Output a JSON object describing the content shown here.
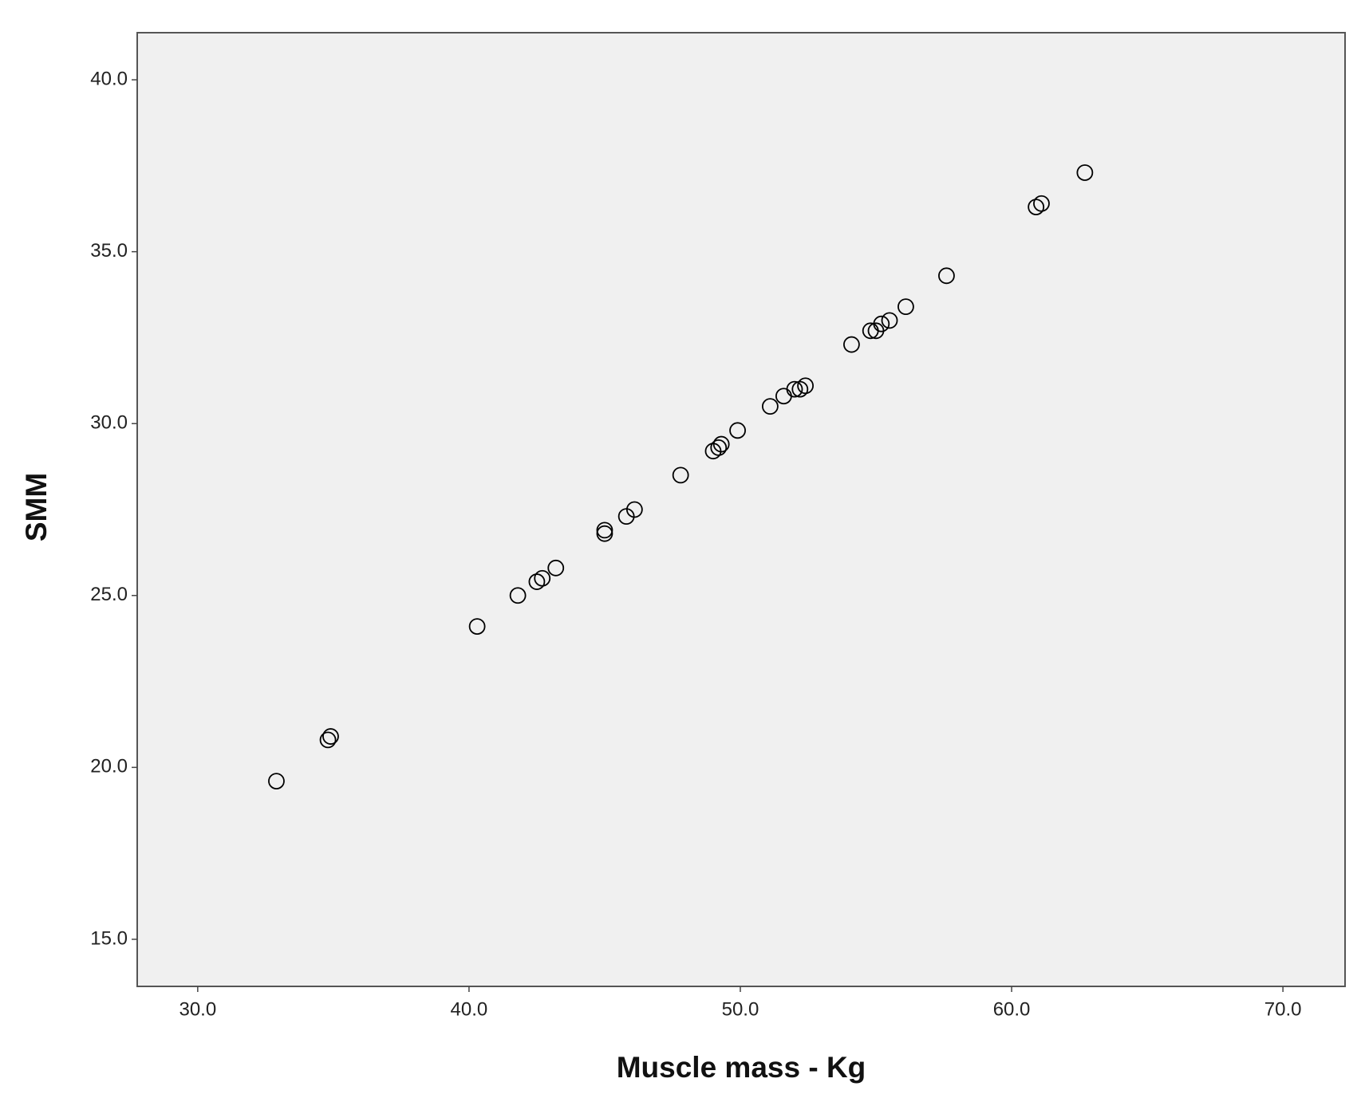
{
  "chart_data": {
    "type": "scatter",
    "xlabel": "Muscle mass - Kg",
    "ylabel": "SMM",
    "x": [
      32.9,
      34.8,
      34.9,
      40.3,
      41.8,
      42.5,
      42.7,
      43.2,
      45.0,
      45.0,
      45.8,
      46.1,
      47.8,
      49.0,
      49.2,
      49.3,
      49.9,
      51.1,
      51.6,
      52.0,
      52.2,
      52.4,
      54.1,
      54.8,
      55.0,
      55.2,
      55.5,
      56.1,
      57.6,
      60.9,
      61.1,
      62.7
    ],
    "values": [
      19.6,
      20.8,
      20.9,
      24.1,
      25.0,
      25.4,
      25.5,
      25.8,
      26.9,
      26.8,
      27.3,
      27.5,
      28.5,
      29.2,
      29.3,
      29.4,
      29.8,
      30.5,
      30.8,
      31.0,
      31.0,
      31.1,
      32.3,
      32.7,
      32.7,
      32.9,
      33.0,
      33.4,
      34.3,
      36.3,
      36.4,
      37.3
    ],
    "color": "#000000",
    "background": "#f0f0f0",
    "xlim": [
      27.77,
      72.29
    ],
    "ylim": [
      13.63,
      41.37
    ],
    "xticks": [
      {
        "value": 30,
        "label": "30.0"
      },
      {
        "value": 40,
        "label": "40.0"
      },
      {
        "value": 50,
        "label": "50.0"
      },
      {
        "value": 60,
        "label": "60.0"
      },
      {
        "value": 70,
        "label": "70.0"
      }
    ],
    "yticks": [
      {
        "value": 15,
        "label": "15.0"
      },
      {
        "value": 20,
        "label": "20.0"
      },
      {
        "value": 25,
        "label": "25.0"
      },
      {
        "value": 30,
        "label": "30.0"
      },
      {
        "value": 35,
        "label": "35.0"
      },
      {
        "value": 40,
        "label": "40.0"
      }
    ],
    "grid": false
  }
}
